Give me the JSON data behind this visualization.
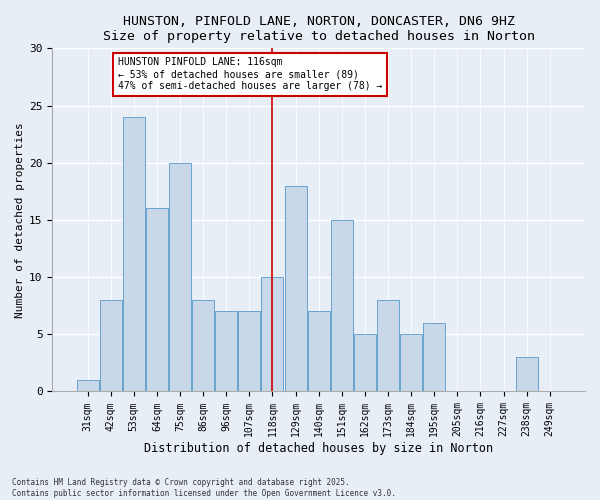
{
  "title1": "HUNSTON, PINFOLD LANE, NORTON, DONCASTER, DN6 9HZ",
  "title2": "Size of property relative to detached houses in Norton",
  "xlabel": "Distribution of detached houses by size in Norton",
  "ylabel": "Number of detached properties",
  "categories": [
    "31sqm",
    "42sqm",
    "53sqm",
    "64sqm",
    "75sqm",
    "86sqm",
    "96sqm",
    "107sqm",
    "118sqm",
    "129sqm",
    "140sqm",
    "151sqm",
    "162sqm",
    "173sqm",
    "184sqm",
    "195sqm",
    "205sqm",
    "216sqm",
    "227sqm",
    "238sqm",
    "249sqm"
  ],
  "values": [
    1,
    8,
    24,
    16,
    20,
    8,
    7,
    7,
    10,
    18,
    7,
    15,
    5,
    8,
    5,
    6,
    0,
    0,
    0,
    3,
    0
  ],
  "bar_color": "#c8d8e8",
  "bar_edge_color": "#5599cc",
  "vline_x_idx": 8,
  "vline_color": "#cc0000",
  "annotation_title": "HUNSTON PINFOLD LANE: 116sqm",
  "annotation_line1": "← 53% of detached houses are smaller (89)",
  "annotation_line2": "47% of semi-detached houses are larger (78) →",
  "ylim": [
    0,
    30
  ],
  "yticks": [
    0,
    5,
    10,
    15,
    20,
    25,
    30
  ],
  "bg_color": "#e8eef6",
  "footer1": "Contains HM Land Registry data © Crown copyright and database right 2025.",
  "footer2": "Contains public sector information licensed under the Open Government Licence v3.0."
}
